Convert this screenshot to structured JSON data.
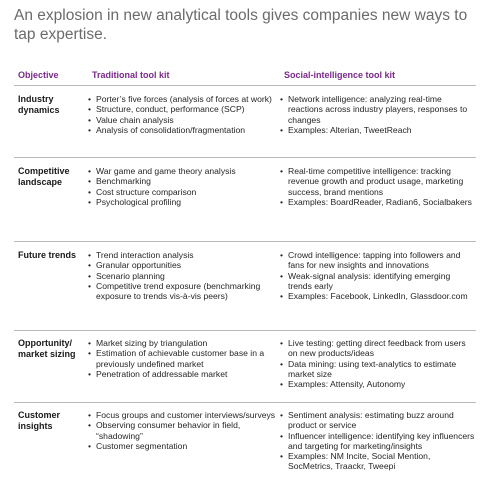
{
  "title": "An explosion in new analytical tools gives companies new ways to tap expertise.",
  "headers": {
    "objective": "Objective",
    "traditional": "Traditional tool kit",
    "social": "Social-intelligence tool kit"
  },
  "rows": [
    {
      "objective": "Industry dynamics",
      "traditional": [
        "Porter’s five forces (analysis of forces at work)",
        "Structure, conduct, performance (SCP)",
        "Value chain analysis",
        "Analysis of consolidation/fragmentation"
      ],
      "social": [
        "Network intelligence: analyzing real-time reactions across industry players, responses to changes",
        "Examples: Alterian, TweetReach"
      ]
    },
    {
      "objective": "Competitive landscape",
      "traditional": [
        "War game and game theory analysis",
        "Benchmarking",
        "Cost structure comparison",
        "Psychological profiling"
      ],
      "social": [
        "Real-time competitive intelligence: tracking revenue growth and product usage, marketing success, brand mentions",
        "Examples: BoardReader, Radian6, Socialbakers"
      ]
    },
    {
      "objective": "Future trends",
      "traditional": [
        "Trend interaction analysis",
        "Granular opportunities",
        "Scenario planning",
        "Competitive trend exposure (benchmarking exposure to trends vis-à-vis peers)"
      ],
      "social": [
        "Crowd intelligence: tapping into followers and fans for new insights and innovations",
        "Weak-signal analysis: identifying emerging trends early",
        "Examples: Facebook, LinkedIn, Glassdoor.com"
      ]
    },
    {
      "objective": "Opportunity/ market sizing",
      "traditional": [
        "Market sizing by triangulation",
        "Estimation of achievable customer base in a previously undefined market",
        "Penetration of addressable market"
      ],
      "social": [
        "Live testing: getting direct feedback from users on new products/ideas",
        "Data mining: using text-analytics to estimate market size",
        "Examples: Attensity, Autonomy"
      ]
    },
    {
      "objective": "Customer insights",
      "traditional": [
        "Focus groups and customer interviews/surveys",
        "Observing consumer behavior in field, “shadowing”",
        "Customer segmentation"
      ],
      "social": [
        "Sentiment analysis: estimating buzz around product or service",
        "Influencer intelligence: identifying key influencers and targeting for marketing/insights",
        "Examples: NM Incite, Social Mention, SocMetrics, Traackr, Tweepi"
      ]
    }
  ]
}
